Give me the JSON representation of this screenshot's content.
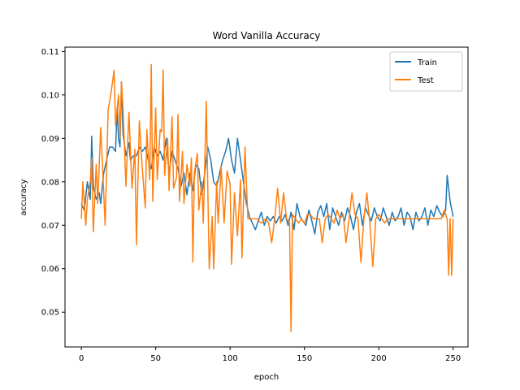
{
  "chart_data": {
    "type": "line",
    "title": "Word Vanilla Accuracy",
    "xlabel": "epoch",
    "ylabel": "accuracy",
    "xlim": [
      -11,
      260
    ],
    "ylim": [
      0.042,
      0.111
    ],
    "xticks": [
      0,
      50,
      100,
      150,
      200,
      250
    ],
    "xtick_labels": [
      "0",
      "50",
      "100",
      "150",
      "200",
      "250"
    ],
    "yticks": [
      0.05,
      0.06,
      0.07,
      0.08,
      0.09,
      0.1,
      0.11
    ],
    "ytick_labels": [
      "0.05",
      "0.06",
      "0.07",
      "0.08",
      "0.09",
      "0.10",
      "0.11"
    ],
    "grid": false,
    "legend": "top-right",
    "series": [
      {
        "name": "Train",
        "color": "#1f77b4",
        "points": [
          [
            0,
            0.075
          ],
          [
            2,
            0.0735
          ],
          [
            4,
            0.08
          ],
          [
            6,
            0.076
          ],
          [
            7,
            0.0905
          ],
          [
            8,
            0.079
          ],
          [
            10,
            0.076
          ],
          [
            12,
            0.0775
          ],
          [
            13,
            0.075
          ],
          [
            15,
            0.082
          ],
          [
            17,
            0.085
          ],
          [
            19,
            0.088
          ],
          [
            21,
            0.088
          ],
          [
            23,
            0.087
          ],
          [
            24,
            0.097
          ],
          [
            25,
            0.09
          ],
          [
            26,
            0.088
          ],
          [
            27,
            0.103
          ],
          [
            28,
            0.091
          ],
          [
            30,
            0.086
          ],
          [
            32,
            0.089
          ],
          [
            33,
            0.085
          ],
          [
            35,
            0.086
          ],
          [
            37,
            0.086
          ],
          [
            39,
            0.088
          ],
          [
            41,
            0.087
          ],
          [
            43,
            0.088
          ],
          [
            45,
            0.085
          ],
          [
            47,
            0.083
          ],
          [
            49,
            0.088
          ],
          [
            51,
            0.086
          ],
          [
            53,
            0.087
          ],
          [
            55,
            0.085
          ],
          [
            57,
            0.09
          ],
          [
            59,
            0.082
          ],
          [
            61,
            0.087
          ],
          [
            63,
            0.085
          ],
          [
            65,
            0.083
          ],
          [
            67,
            0.079
          ],
          [
            69,
            0.082
          ],
          [
            71,
            0.077
          ],
          [
            73,
            0.082
          ],
          [
            75,
            0.078
          ],
          [
            77,
            0.084
          ],
          [
            79,
            0.083
          ],
          [
            81,
            0.077
          ],
          [
            83,
            0.082
          ],
          [
            85,
            0.088
          ],
          [
            87,
            0.085
          ],
          [
            89,
            0.08
          ],
          [
            91,
            0.079
          ],
          [
            93,
            0.082
          ],
          [
            95,
            0.085
          ],
          [
            97,
            0.087
          ],
          [
            99,
            0.09
          ],
          [
            101,
            0.085
          ],
          [
            103,
            0.082
          ],
          [
            105,
            0.09
          ],
          [
            107,
            0.085
          ],
          [
            109,
            0.08
          ],
          [
            111,
            0.075
          ],
          [
            113,
            0.072
          ],
          [
            115,
            0.0705
          ],
          [
            117,
            0.069
          ],
          [
            119,
            0.071
          ],
          [
            121,
            0.073
          ],
          [
            123,
            0.07
          ],
          [
            125,
            0.072
          ],
          [
            127,
            0.071
          ],
          [
            129,
            0.072
          ],
          [
            131,
            0.0705
          ],
          [
            133,
            0.072
          ],
          [
            135,
            0.071
          ],
          [
            137,
            0.0725
          ],
          [
            139,
            0.07
          ],
          [
            141,
            0.073
          ],
          [
            143,
            0.069
          ],
          [
            145,
            0.075
          ],
          [
            147,
            0.072
          ],
          [
            149,
            0.071
          ],
          [
            151,
            0.07
          ],
          [
            153,
            0.0735
          ],
          [
            155,
            0.071
          ],
          [
            157,
            0.068
          ],
          [
            159,
            0.073
          ],
          [
            161,
            0.0745
          ],
          [
            163,
            0.072
          ],
          [
            165,
            0.075
          ],
          [
            167,
            0.069
          ],
          [
            169,
            0.074
          ],
          [
            171,
            0.072
          ],
          [
            173,
            0.07
          ],
          [
            175,
            0.073
          ],
          [
            177,
            0.071
          ],
          [
            179,
            0.074
          ],
          [
            181,
            0.072
          ],
          [
            183,
            0.069
          ],
          [
            185,
            0.073
          ],
          [
            187,
            0.075
          ],
          [
            189,
            0.07
          ],
          [
            191,
            0.074
          ],
          [
            193,
            0.0725
          ],
          [
            195,
            0.071
          ],
          [
            197,
            0.074
          ],
          [
            199,
            0.072
          ],
          [
            201,
            0.071
          ],
          [
            203,
            0.074
          ],
          [
            205,
            0.072
          ],
          [
            207,
            0.07
          ],
          [
            209,
            0.073
          ],
          [
            211,
            0.071
          ],
          [
            213,
            0.072
          ],
          [
            215,
            0.074
          ],
          [
            217,
            0.07
          ],
          [
            219,
            0.073
          ],
          [
            221,
            0.072
          ],
          [
            223,
            0.069
          ],
          [
            225,
            0.073
          ],
          [
            227,
            0.071
          ],
          [
            229,
            0.072
          ],
          [
            231,
            0.074
          ],
          [
            233,
            0.07
          ],
          [
            235,
            0.0735
          ],
          [
            237,
            0.072
          ],
          [
            239,
            0.0745
          ],
          [
            241,
            0.073
          ],
          [
            243,
            0.072
          ],
          [
            245,
            0.0735
          ],
          [
            246,
            0.0815
          ],
          [
            248,
            0.0755
          ],
          [
            250,
            0.072
          ]
        ]
      },
      {
        "name": "Test",
        "color": "#ff7f0e",
        "points": [
          [
            0,
            0.0715
          ],
          [
            1,
            0.08
          ],
          [
            3,
            0.07
          ],
          [
            4,
            0.076
          ],
          [
            6,
            0.08
          ],
          [
            7,
            0.0855
          ],
          [
            8,
            0.0685
          ],
          [
            10,
            0.084
          ],
          [
            11,
            0.075
          ],
          [
            13,
            0.0925
          ],
          [
            14,
            0.0855
          ],
          [
            16,
            0.07
          ],
          [
            18,
            0.0965
          ],
          [
            20,
            0.1005
          ],
          [
            22,
            0.1057
          ],
          [
            23,
            0.093
          ],
          [
            25,
            0.1
          ],
          [
            26,
            0.09
          ],
          [
            27,
            0.103
          ],
          [
            28,
            0.097
          ],
          [
            30,
            0.079
          ],
          [
            32,
            0.096
          ],
          [
            34,
            0.0785
          ],
          [
            36,
            0.0875
          ],
          [
            37,
            0.0655
          ],
          [
            39,
            0.094
          ],
          [
            41,
            0.083
          ],
          [
            43,
            0.074
          ],
          [
            44,
            0.092
          ],
          [
            46,
            0.0805
          ],
          [
            47,
            0.107
          ],
          [
            48,
            0.0755
          ],
          [
            50,
            0.097
          ],
          [
            51,
            0.0805
          ],
          [
            53,
            0.092
          ],
          [
            54,
            0.0915
          ],
          [
            55,
            0.1057
          ],
          [
            56,
            0.0815
          ],
          [
            58,
            0.09
          ],
          [
            59,
            0.078
          ],
          [
            61,
            0.095
          ],
          [
            62,
            0.0785
          ],
          [
            64,
            0.081
          ],
          [
            65,
            0.0955
          ],
          [
            66,
            0.0755
          ],
          [
            68,
            0.087
          ],
          [
            69,
            0.075
          ],
          [
            71,
            0.084
          ],
          [
            73,
            0.079
          ],
          [
            74,
            0.0855
          ],
          [
            75,
            0.0615
          ],
          [
            76,
            0.082
          ],
          [
            78,
            0.0865
          ],
          [
            79,
            0.0735
          ],
          [
            81,
            0.08
          ],
          [
            82,
            0.0705
          ],
          [
            84,
            0.0985
          ],
          [
            86,
            0.06
          ],
          [
            88,
            0.072
          ],
          [
            89,
            0.06
          ],
          [
            91,
            0.08
          ],
          [
            92,
            0.0705
          ],
          [
            94,
            0.0835
          ],
          [
            96,
            0.0705
          ],
          [
            98,
            0.0825
          ],
          [
            100,
            0.0795
          ],
          [
            101,
            0.061
          ],
          [
            103,
            0.0775
          ],
          [
            105,
            0.0675
          ],
          [
            107,
            0.0805
          ],
          [
            108,
            0.0625
          ],
          [
            110,
            0.088
          ],
          [
            112,
            0.0715
          ],
          [
            115,
            0.0715
          ],
          [
            118,
            0.0715
          ],
          [
            121,
            0.0705
          ],
          [
            124,
            0.0715
          ],
          [
            126,
            0.0705
          ],
          [
            128,
            0.066
          ],
          [
            130,
            0.0715
          ],
          [
            132,
            0.0785
          ],
          [
            134,
            0.0705
          ],
          [
            136,
            0.0775
          ],
          [
            138,
            0.0715
          ],
          [
            140,
            0.0705
          ],
          [
            141,
            0.0455
          ],
          [
            142,
            0.0725
          ],
          [
            144,
            0.0715
          ],
          [
            146,
            0.0705
          ],
          [
            148,
            0.0715
          ],
          [
            150,
            0.0705
          ],
          [
            152,
            0.0725
          ],
          [
            154,
            0.0725
          ],
          [
            156,
            0.0715
          ],
          [
            158,
            0.0715
          ],
          [
            160,
            0.0715
          ],
          [
            162,
            0.066
          ],
          [
            164,
            0.0715
          ],
          [
            166,
            0.0725
          ],
          [
            168,
            0.0715
          ],
          [
            170,
            0.0705
          ],
          [
            172,
            0.0735
          ],
          [
            174,
            0.0715
          ],
          [
            176,
            0.0725
          ],
          [
            178,
            0.066
          ],
          [
            180,
            0.0715
          ],
          [
            182,
            0.0775
          ],
          [
            184,
            0.0725
          ],
          [
            186,
            0.0715
          ],
          [
            188,
            0.0615
          ],
          [
            190,
            0.0715
          ],
          [
            192,
            0.0775
          ],
          [
            194,
            0.0705
          ],
          [
            196,
            0.0605
          ],
          [
            198,
            0.0715
          ],
          [
            200,
            0.0725
          ],
          [
            202,
            0.0715
          ],
          [
            204,
            0.0705
          ],
          [
            206,
            0.0715
          ],
          [
            208,
            0.0715
          ],
          [
            210,
            0.0715
          ],
          [
            212,
            0.0715
          ],
          [
            214,
            0.0715
          ],
          [
            216,
            0.0715
          ],
          [
            218,
            0.0715
          ],
          [
            220,
            0.0715
          ],
          [
            222,
            0.0715
          ],
          [
            224,
            0.0715
          ],
          [
            226,
            0.0715
          ],
          [
            228,
            0.0715
          ],
          [
            230,
            0.0715
          ],
          [
            232,
            0.0715
          ],
          [
            234,
            0.0715
          ],
          [
            236,
            0.0715
          ],
          [
            238,
            0.0715
          ],
          [
            240,
            0.0715
          ],
          [
            242,
            0.0715
          ],
          [
            244,
            0.0735
          ],
          [
            246,
            0.0715
          ],
          [
            247,
            0.0585
          ],
          [
            248,
            0.0715
          ],
          [
            249,
            0.0585
          ],
          [
            250,
            0.0715
          ]
        ]
      }
    ]
  }
}
